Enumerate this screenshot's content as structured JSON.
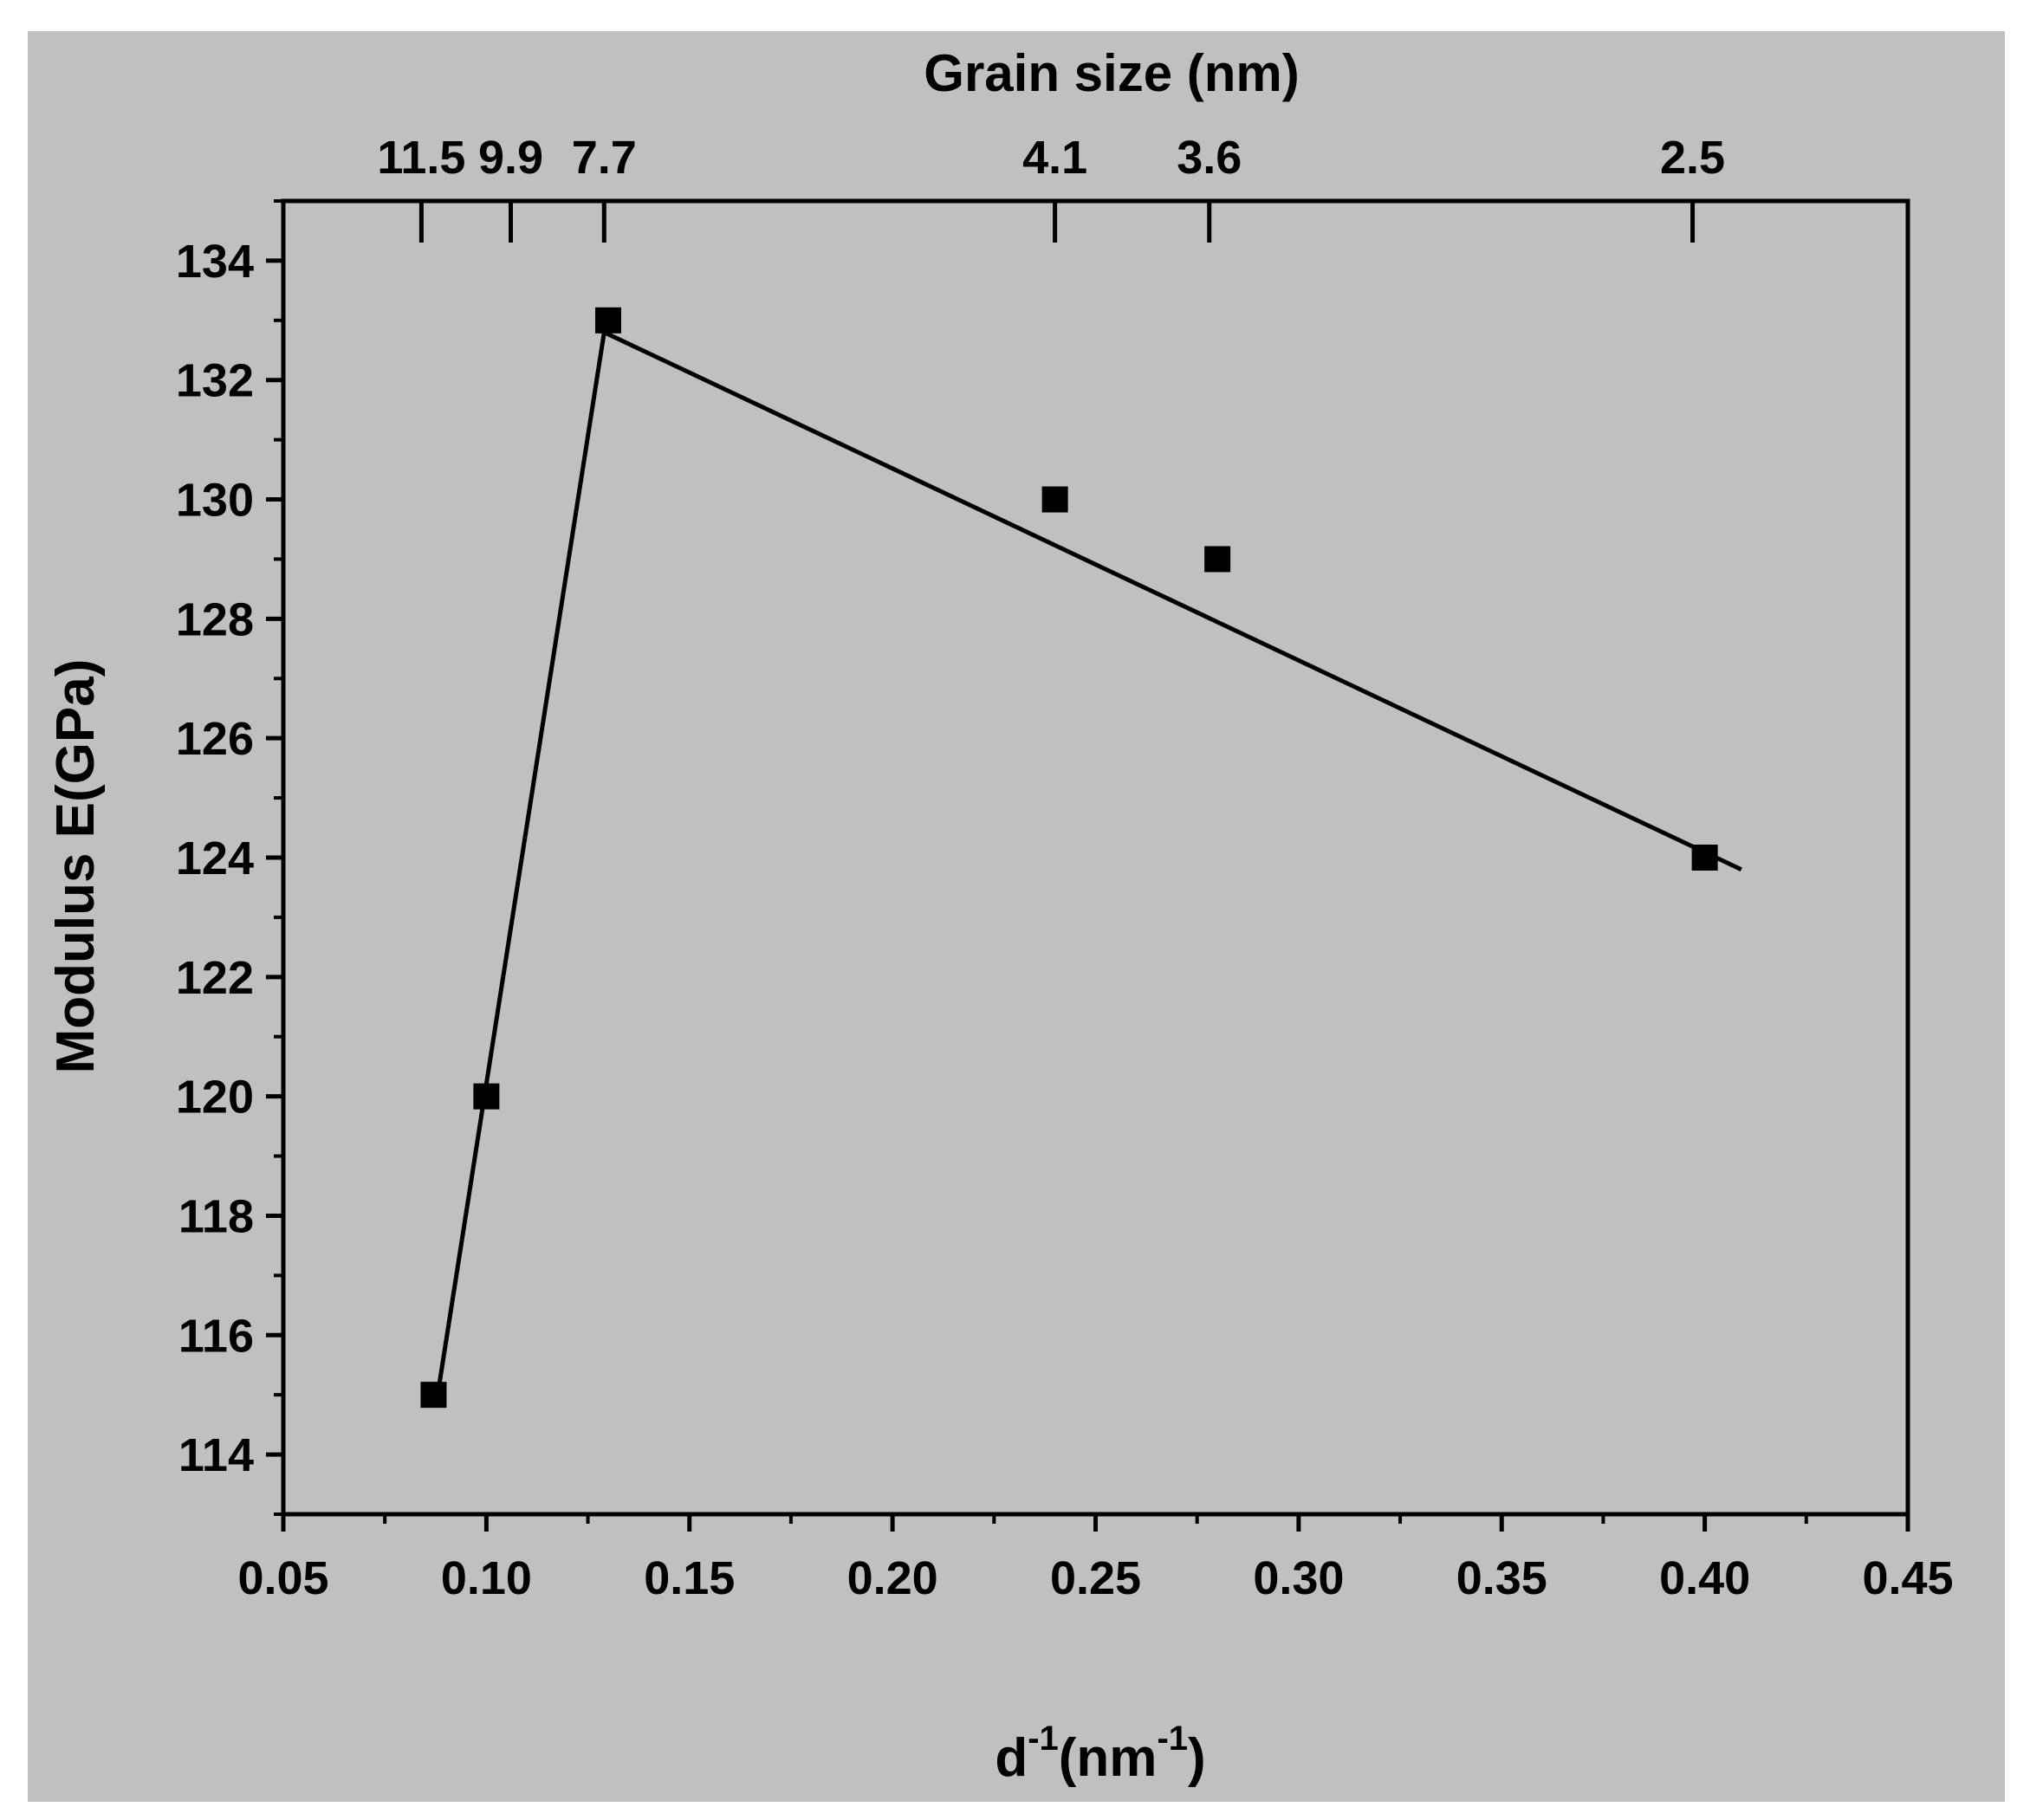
{
  "chart_data": {
    "type": "scatter",
    "title": "",
    "xlabel_main": "d",
    "xlabel_sup1": "-1",
    "xlabel_unit": "(nm",
    "xlabel_sup2": "-1",
    "xlabel_close": ")",
    "ylabel": "Modulus E(GPa)",
    "top_axis_label": "Grain size (nm)",
    "xlim": [
      0.05,
      0.45
    ],
    "ylim": [
      113,
      135
    ],
    "x_ticks": [
      0.05,
      0.1,
      0.15,
      0.2,
      0.25,
      0.3,
      0.35,
      0.4,
      0.45
    ],
    "x_tick_labels": [
      "0.05",
      "0.10",
      "0.15",
      "0.20",
      "0.25",
      "0.30",
      "0.35",
      "0.40",
      "0.45"
    ],
    "y_ticks": [
      114,
      116,
      118,
      120,
      122,
      124,
      126,
      128,
      130,
      132,
      134
    ],
    "y_tick_labels": [
      "114",
      "116",
      "118",
      "120",
      "122",
      "124",
      "126",
      "128",
      "130",
      "132",
      "134"
    ],
    "top_ticks": [
      {
        "x": 0.084,
        "label": "11.5"
      },
      {
        "x": 0.106,
        "label": "9.9"
      },
      {
        "x": 0.129,
        "label": "7.7"
      },
      {
        "x": 0.24,
        "label": "4.1"
      },
      {
        "x": 0.278,
        "label": "3.6"
      },
      {
        "x": 0.397,
        "label": "2.5"
      }
    ],
    "points": [
      {
        "x": 0.087,
        "y": 115
      },
      {
        "x": 0.1,
        "y": 120
      },
      {
        "x": 0.13,
        "y": 133
      },
      {
        "x": 0.24,
        "y": 130
      },
      {
        "x": 0.28,
        "y": 129
      },
      {
        "x": 0.4,
        "y": 124
      }
    ],
    "fit_lines": [
      [
        {
          "x": 0.088,
          "y": 115
        },
        {
          "x": 0.129,
          "y": 132.8
        }
      ],
      [
        {
          "x": 0.129,
          "y": 132.8
        },
        {
          "x": 0.409,
          "y": 123.8
        }
      ]
    ],
    "colors": {
      "plot_background": "#c0c0c0",
      "ink": "#000000",
      "frame": "#c0c0c0"
    }
  }
}
